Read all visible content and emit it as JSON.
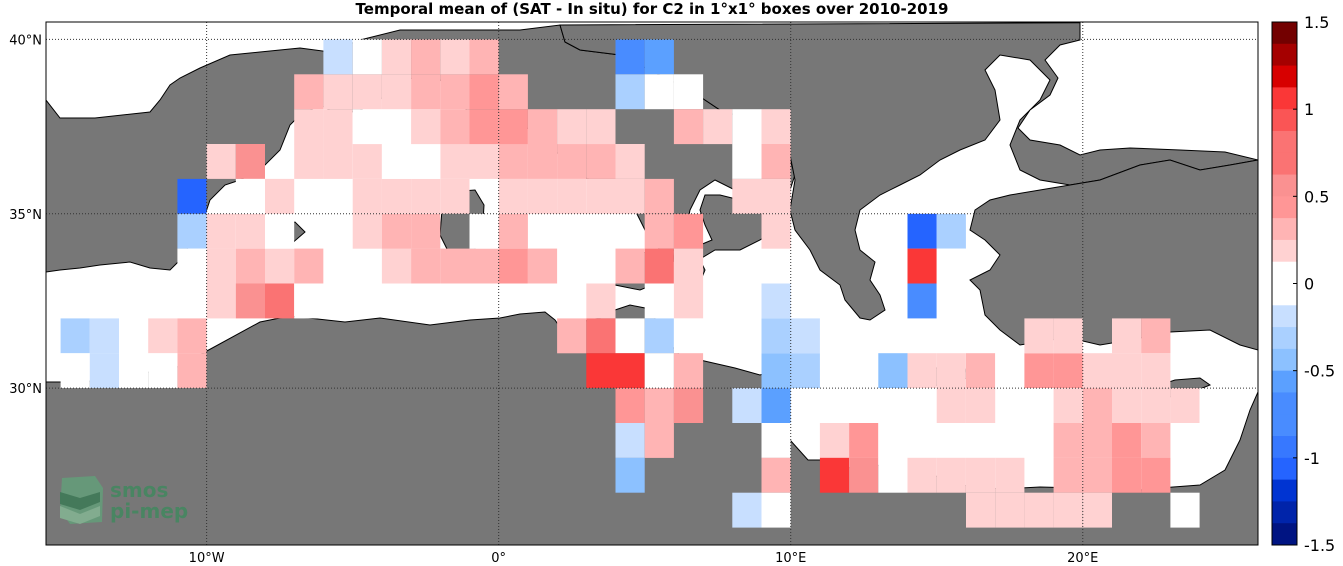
{
  "title": "Temporal mean of (SAT - In situ) for C2 in 1°x1° boxes over 2010-2019",
  "colors": {
    "land": "#777777",
    "sea": "#ffffff",
    "coast": "#000000",
    "grid": "#333333"
  },
  "logo": {
    "line1": "smos",
    "line2": "pi-mep",
    "icon": "smos-logo-icon"
  },
  "map": {
    "lon_range": [
      -15.5,
      26
    ],
    "lat_range": [
      25.5,
      40.5
    ],
    "lon_ticks": [
      {
        "value": -10,
        "label": "10°W"
      },
      {
        "value": 0,
        "label": "0°"
      },
      {
        "value": 10,
        "label": "10°E"
      },
      {
        "value": 20,
        "label": "20°E"
      }
    ],
    "lat_ticks": [
      {
        "value": 40,
        "label": "40°N"
      },
      {
        "value": 35,
        "label": "35°N"
      },
      {
        "value": 30,
        "label": "30°N"
      }
    ]
  },
  "colorbar": {
    "min": -1.5,
    "max": 1.5,
    "ticks": [
      {
        "value": 1.5,
        "label": "1.5"
      },
      {
        "value": 1,
        "label": "1"
      },
      {
        "value": 0.5,
        "label": "0.5"
      },
      {
        "value": 0,
        "label": "0"
      },
      {
        "value": -0.5,
        "label": "-0.5"
      },
      {
        "value": -1,
        "label": "-1"
      },
      {
        "value": -1.5,
        "label": "-1.5"
      }
    ]
  },
  "chart_data": {
    "type": "heatmap",
    "title": "Temporal mean of (SAT - In situ) for C2 in 1°x1° boxes over 2010-2019",
    "cells": [
      [
        -14.5,
        31.5,
        -0.3
      ],
      [
        -13.5,
        31.5,
        -0.2
      ],
      [
        -14.5,
        30.5,
        -0.1
      ],
      [
        -13.5,
        30.5,
        -0.2
      ],
      [
        -12.5,
        30.5,
        -0.1
      ],
      [
        -12.5,
        31.5,
        0.1
      ],
      [
        -11.5,
        31.5,
        0.15
      ],
      [
        -10.5,
        31.5,
        0.3
      ],
      [
        -10.5,
        30.5,
        0.3
      ],
      [
        -11.5,
        30.5,
        0.1
      ],
      [
        -9.5,
        32.5,
        0.15
      ],
      [
        -8.5,
        32.5,
        0.6
      ],
      [
        -7.5,
        32.5,
        0.7
      ],
      [
        -6.5,
        32.5,
        0.1
      ],
      [
        -9.5,
        33.5,
        0.2
      ],
      [
        -8.5,
        33.5,
        0.3
      ],
      [
        -7.5,
        33.5,
        0.2
      ],
      [
        -6.5,
        33.5,
        0.3
      ],
      [
        -5.5,
        33.5,
        0.1
      ],
      [
        -4.5,
        33.5,
        0.1
      ],
      [
        -3.5,
        33.5,
        0.2
      ],
      [
        -2.5,
        33.5,
        0.3
      ],
      [
        -1.5,
        33.5,
        0.3
      ],
      [
        -0.5,
        33.5,
        0.3
      ],
      [
        0.5,
        33.5,
        0.4
      ],
      [
        1.5,
        33.5,
        0.3
      ],
      [
        -9.5,
        34.5,
        0.15
      ],
      [
        -8.5,
        34.5,
        0.2
      ],
      [
        -7.5,
        34.5,
        0.1
      ],
      [
        -4.5,
        34.5,
        0.2
      ],
      [
        -3.5,
        34.5,
        0.3
      ],
      [
        -2.5,
        34.5,
        0.3
      ],
      [
        -0.5,
        34.5,
        0.1
      ],
      [
        0.5,
        34.5,
        0.3
      ],
      [
        -10.5,
        35.5,
        -1.0
      ],
      [
        -10.5,
        34.5,
        -0.3
      ],
      [
        -7.5,
        35.5,
        0.2
      ],
      [
        -5.5,
        35.5,
        0.1
      ],
      [
        -4.5,
        35.5,
        0.2
      ],
      [
        -3.5,
        35.5,
        0.2
      ],
      [
        -2.5,
        35.5,
        0.2
      ],
      [
        -1.5,
        35.5,
        0.2
      ],
      [
        0.5,
        35.5,
        0.2
      ],
      [
        1.5,
        35.5,
        0.15
      ],
      [
        2.5,
        35.5,
        0.2
      ],
      [
        3.5,
        35.5,
        0.2
      ],
      [
        4.5,
        35.5,
        0.2
      ],
      [
        5.5,
        35.5,
        0.3
      ],
      [
        -1.5,
        36.5,
        0.2
      ],
      [
        -0.5,
        36.5,
        0.15
      ],
      [
        0.5,
        36.5,
        0.3
      ],
      [
        1.5,
        36.5,
        0.3
      ],
      [
        2.5,
        36.5,
        0.3
      ],
      [
        3.5,
        36.5,
        0.3
      ],
      [
        4.5,
        36.5,
        0.2
      ],
      [
        -9.5,
        36.5,
        0.2
      ],
      [
        -6.5,
        36.5,
        0.15
      ],
      [
        -5.5,
        36.5,
        0.15
      ],
      [
        -4.5,
        36.5,
        0.2
      ],
      [
        -3.5,
        36.5,
        -0.1
      ],
      [
        -2.5,
        36.5,
        0.1
      ],
      [
        -6.5,
        37.5,
        0.15
      ],
      [
        -5.5,
        37.5,
        0.2
      ],
      [
        -4.5,
        37.5,
        -0.1
      ],
      [
        -3.5,
        37.5,
        0.1
      ],
      [
        -2.5,
        37.5,
        0.2
      ],
      [
        -1.5,
        37.5,
        0.3
      ],
      [
        -0.5,
        37.5,
        0.4
      ],
      [
        0.5,
        37.5,
        0.4
      ],
      [
        1.5,
        37.5,
        0.3
      ],
      [
        2.5,
        37.5,
        0.2
      ],
      [
        3.5,
        37.5,
        0.15
      ],
      [
        -6.5,
        38.5,
        0.3
      ],
      [
        -5.5,
        38.5,
        0.2
      ],
      [
        -4.5,
        38.5,
        0.15
      ],
      [
        -3.5,
        38.5,
        0.2
      ],
      [
        -2.5,
        38.5,
        0.3
      ],
      [
        -1.5,
        38.5,
        0.3
      ],
      [
        -0.5,
        38.5,
        0.4
      ],
      [
        0.5,
        38.5,
        0.3
      ],
      [
        -5.5,
        39.5,
        -0.2
      ],
      [
        -4.5,
        39.5,
        0.1
      ],
      [
        -3.5,
        39.5,
        0.2
      ],
      [
        -2.5,
        39.5,
        0.3
      ],
      [
        -1.5,
        39.5,
        0.2
      ],
      [
        -0.5,
        39.5,
        0.3
      ],
      [
        -8.5,
        36.5,
        0.6
      ],
      [
        -8.5,
        35.5,
        0.1
      ],
      [
        -10.5,
        33.5,
        0.1
      ],
      [
        4.5,
        39.5,
        -0.8
      ],
      [
        5.5,
        39.5,
        -0.6
      ],
      [
        4.5,
        38.5,
        -0.3
      ],
      [
        5.5,
        38.5,
        -0.1
      ],
      [
        6.5,
        38.5,
        0.1
      ],
      [
        6.5,
        37.5,
        0.3
      ],
      [
        7.5,
        37.5,
        0.15
      ],
      [
        8.5,
        37.5,
        0.1
      ],
      [
        9.5,
        37.5,
        0.15
      ],
      [
        8.5,
        36.5,
        0.1
      ],
      [
        9.5,
        36.5,
        0.3
      ],
      [
        8.5,
        35.5,
        0.15
      ],
      [
        9.5,
        35.5,
        0.2
      ],
      [
        9.5,
        34.5,
        0.2
      ],
      [
        6.5,
        34.5,
        0.5
      ],
      [
        5.5,
        34.5,
        0.3
      ],
      [
        5.5,
        33.5,
        0.8
      ],
      [
        6.5,
        33.5,
        0.2
      ],
      [
        4.5,
        33.5,
        0.3
      ],
      [
        3.5,
        33.5,
        0.1
      ],
      [
        5.5,
        32.5,
        0.1
      ],
      [
        6.5,
        32.5,
        0.2
      ],
      [
        3.5,
        32.5,
        0.15
      ],
      [
        2.5,
        31.5,
        0.3
      ],
      [
        3.5,
        31.5,
        0.8
      ],
      [
        4.5,
        31.5,
        0.1
      ],
      [
        5.5,
        31.5,
        -0.3
      ],
      [
        6.5,
        31.5,
        0.1
      ],
      [
        3.5,
        30.5,
        1.1
      ],
      [
        4.5,
        30.5,
        1.1
      ],
      [
        5.5,
        30.5,
        0.1
      ],
      [
        6.5,
        30.5,
        0.3
      ],
      [
        4.5,
        29.5,
        0.5
      ],
      [
        5.5,
        29.5,
        0.3
      ],
      [
        6.5,
        29.5,
        0.6
      ],
      [
        8.5,
        29.5,
        -0.2
      ],
      [
        9.5,
        29.5,
        -0.6
      ],
      [
        10.5,
        29.5,
        0.1
      ],
      [
        13.5,
        29.5,
        -0.1
      ],
      [
        4.5,
        28.5,
        -0.2
      ],
      [
        5.5,
        28.5,
        0.3
      ],
      [
        9.5,
        28.5,
        0.1
      ],
      [
        11.5,
        28.5,
        0.15
      ],
      [
        12.5,
        28.5,
        0.4
      ],
      [
        13.5,
        28.5,
        0.1
      ],
      [
        4.5,
        27.5,
        -0.4
      ],
      [
        9.5,
        27.5,
        0.3
      ],
      [
        11.5,
        27.5,
        1.0
      ],
      [
        12.5,
        27.5,
        0.6
      ],
      [
        13.5,
        27.5,
        0.1
      ],
      [
        14.5,
        27.5,
        0.2
      ],
      [
        8.5,
        26.5,
        -0.2
      ],
      [
        9.5,
        26.5,
        0.1
      ],
      [
        16.5,
        26.5,
        0.15
      ],
      [
        17.5,
        26.5,
        0.15
      ],
      [
        18.5,
        26.5,
        0.15
      ],
      [
        9.5,
        30.5,
        -0.4
      ],
      [
        10.5,
        30.5,
        -0.3
      ],
      [
        9.5,
        31.5,
        -0.3
      ],
      [
        10.5,
        31.5,
        -0.2
      ],
      [
        9.5,
        32.5,
        -0.2
      ],
      [
        13.5,
        30.5,
        -0.4
      ],
      [
        14.5,
        34.5,
        -1.1
      ],
      [
        15.5,
        34.5,
        -0.3
      ],
      [
        14.5,
        33.5,
        1.1
      ],
      [
        14.5,
        32.5,
        -0.8
      ],
      [
        15.5,
        32.5,
        0.1
      ],
      [
        15.5,
        33.5,
        0.1
      ],
      [
        14.5,
        30.5,
        0.15
      ],
      [
        15.5,
        30.5,
        0.2
      ],
      [
        16.5,
        30.5,
        0.3
      ],
      [
        17.5,
        30.5,
        0.1
      ],
      [
        18.5,
        30.5,
        0.5
      ],
      [
        19.5,
        30.5,
        0.4
      ],
      [
        18.5,
        31.5,
        0.15
      ],
      [
        19.5,
        31.5,
        0.15
      ],
      [
        21.5,
        31.5,
        0.15
      ],
      [
        22.5,
        31.5,
        0.3
      ],
      [
        20.5,
        30.5,
        0.15
      ],
      [
        21.5,
        30.5,
        0.15
      ],
      [
        22.5,
        30.5,
        0.2
      ],
      [
        15.5,
        29.5,
        0.15
      ],
      [
        16.5,
        29.5,
        0.15
      ],
      [
        19.5,
        29.5,
        0.2
      ],
      [
        20.5,
        29.5,
        0.3
      ],
      [
        21.5,
        29.5,
        0.2
      ],
      [
        22.5,
        29.5,
        0.2
      ],
      [
        23.5,
        29.5,
        0.2
      ],
      [
        24.5,
        29.5,
        -0.1
      ],
      [
        15.5,
        28.5,
        0.1
      ],
      [
        19.5,
        28.5,
        0.3
      ],
      [
        20.5,
        28.5,
        0.3
      ],
      [
        21.5,
        28.5,
        0.5
      ],
      [
        22.5,
        28.5,
        0.3
      ],
      [
        15.5,
        27.5,
        0.2
      ],
      [
        16.5,
        27.5,
        0.15
      ],
      [
        17.5,
        27.5,
        0.15
      ],
      [
        19.5,
        27.5,
        0.3
      ],
      [
        20.5,
        27.5,
        0.3
      ],
      [
        21.5,
        27.5,
        0.5
      ],
      [
        22.5,
        27.5,
        0.5
      ],
      [
        23.5,
        26.5,
        -0.1
      ],
      [
        19.5,
        26.5,
        0.15
      ],
      [
        20.5,
        26.5,
        0.15
      ]
    ]
  }
}
